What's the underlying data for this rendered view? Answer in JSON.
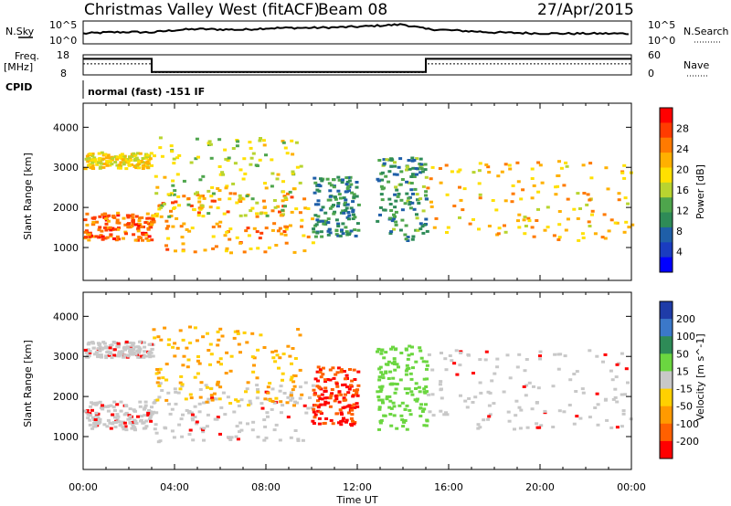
{
  "header": {
    "station": "Christmas Valley West (fitACF)",
    "beam": "Beam 08",
    "date": "27/Apr/2015"
  },
  "top_panels": {
    "nsky_label": "N.Sky",
    "nsky_ticks": [
      "10^5",
      "10^0"
    ],
    "nsearch_label": "N.Search",
    "nsearch_ticks": [
      "10^5",
      "10^0"
    ],
    "freq_label": "Freq.",
    "freq_unit": "[MHz]",
    "freq_ticks": [
      "18",
      "8"
    ],
    "nave_label": "Nave",
    "nave_ticks": [
      "60",
      "0"
    ],
    "cpid_label": "CPID",
    "cpid_text": "normal (fast) -151 IF"
  },
  "chart_data": [
    {
      "type": "line",
      "name": "nsky_nsearch",
      "x": [
        0,
        1,
        2,
        3,
        4,
        5,
        6,
        7,
        8,
        9,
        10,
        11,
        12,
        13,
        14,
        15,
        16,
        17,
        18,
        19,
        20,
        21,
        22,
        23,
        24
      ],
      "series": [
        {
          "values": [
            0.45,
            0.5,
            0.52,
            0.5,
            0.6,
            0.65,
            0.63,
            0.62,
            0.68,
            0.7,
            0.7,
            0.72,
            0.75,
            0.8,
            0.85,
            0.65,
            0.6,
            0.55,
            0.5,
            0.48,
            0.46,
            0.45,
            0.45,
            0.45,
            0.45
          ]
        }
      ],
      "ylim": [
        0,
        1
      ]
    },
    {
      "type": "line",
      "name": "frequency_nave",
      "series": [
        {
          "x": [
            0,
            3,
            3,
            15,
            15,
            24
          ],
          "values": [
            16,
            16,
            9.5,
            9.5,
            16,
            16
          ]
        },
        {
          "x": [
            0,
            3,
            3,
            15,
            15,
            24
          ],
          "values": [
            13.5,
            13.5,
            9.2,
            9.2,
            13.5,
            13.5
          ]
        }
      ],
      "ylim": [
        8,
        18
      ]
    },
    {
      "type": "heatmap",
      "name": "power",
      "xlabel": "",
      "ylabel": "Slant Range [km]",
      "xlim": [
        0,
        24
      ],
      "ylim": [
        180,
        4600
      ],
      "yticks": [
        1000,
        2000,
        3000,
        4000
      ],
      "colorbar": {
        "label": "Power [dB]",
        "ticks": [
          "28",
          "24",
          "20",
          "16",
          "12",
          "8",
          "4"
        ],
        "colors": [
          "#ff0000",
          "#ff3b00",
          "#ff7a00",
          "#ffb000",
          "#ffe000",
          "#b8d430",
          "#4ea54c",
          "#2e8b57",
          "#1f5fa8",
          "#1a3cc0",
          "#0000ff"
        ]
      },
      "bands": [
        {
          "t": [
            0,
            3
          ],
          "r": [
            1200,
            1900
          ],
          "level": 25
        },
        {
          "t": [
            0,
            3
          ],
          "r": [
            3000,
            3400
          ],
          "level": 18
        },
        {
          "t": [
            3,
            10
          ],
          "r": [
            900,
            2400
          ],
          "level": 22
        },
        {
          "t": [
            3,
            9.5
          ],
          "r": [
            1800,
            3800
          ],
          "level": 16
        },
        {
          "t": [
            10,
            12
          ],
          "r": [
            1300,
            2800
          ],
          "level": 9
        },
        {
          "t": [
            12.8,
            15
          ],
          "r": [
            1200,
            3300
          ],
          "level": 10
        },
        {
          "t": [
            15,
            24
          ],
          "r": [
            1200,
            3200
          ],
          "level": 20
        }
      ]
    },
    {
      "type": "heatmap",
      "name": "velocity",
      "xlabel": "Time UT",
      "ylabel": "Slant Range [km]",
      "xlim": [
        0,
        24
      ],
      "ylim": [
        180,
        4600
      ],
      "xticks": [
        "00:00",
        "04:00",
        "08:00",
        "12:00",
        "16:00",
        "20:00",
        "00:00"
      ],
      "yticks": [
        1000,
        2000,
        3000,
        4000
      ],
      "colorbar": {
        "label": "Velocity [m s^-1]",
        "ticks": [
          "200",
          "100",
          "50",
          "15",
          "-15",
          "-50",
          "-100",
          "-200"
        ],
        "colors": [
          "#1f3ca8",
          "#3b78c9",
          "#2e8b57",
          "#6bd640",
          "#c8c8c8",
          "#ffd000",
          "#ff9a00",
          "#ff6000",
          "#ff0000"
        ]
      },
      "bands": [
        {
          "t": [
            0,
            3
          ],
          "r": [
            1200,
            1900
          ],
          "v": 0
        },
        {
          "t": [
            0,
            3
          ],
          "r": [
            3000,
            3400
          ],
          "v": 0
        },
        {
          "t": [
            3,
            10
          ],
          "r": [
            900,
            2400
          ],
          "v": 0
        },
        {
          "t": [
            3,
            9.5
          ],
          "r": [
            1800,
            3800
          ],
          "v": -40
        },
        {
          "t": [
            10,
            12
          ],
          "r": [
            1300,
            2800
          ],
          "v": -180
        },
        {
          "t": [
            12.8,
            15
          ],
          "r": [
            1200,
            3300
          ],
          "v": 80
        },
        {
          "t": [
            15,
            24
          ],
          "r": [
            1200,
            3200
          ],
          "v": 0
        }
      ]
    }
  ]
}
